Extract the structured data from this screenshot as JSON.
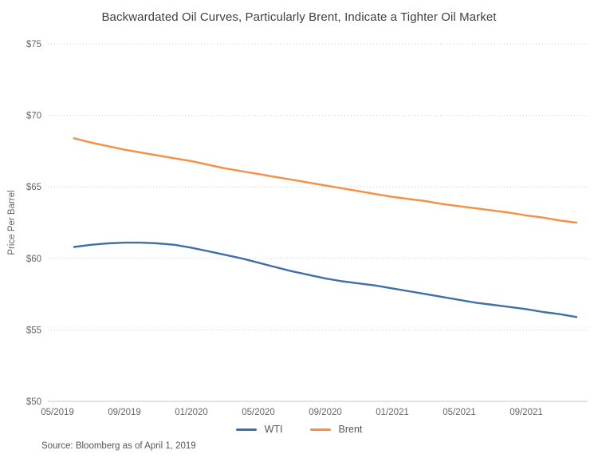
{
  "header": {
    "title": "Backwardated Oil Curves, Particularly Brent, Indicate a Tighter Oil Market"
  },
  "footer": {
    "source": "Source: Bloomberg as of April 1, 2019"
  },
  "colors": {
    "wti_blue": "#3E6FA8",
    "brent_orange": "#F78E44",
    "gridline": "#cccccc",
    "axis_line": "#c4c4c4",
    "axis_text": "#666666",
    "title_text": "#3f3f3f"
  },
  "chart_data": {
    "type": "line",
    "title": "Backwardated Oil Curves, Particularly Brent, Indicate a Tighter Oil Market",
    "xlabel": "",
    "ylabel": "Price Per Barrel",
    "ylim": [
      50,
      75
    ],
    "ytick_values": [
      75,
      70,
      65,
      60,
      55,
      50
    ],
    "ytick_prefix": "$",
    "grid": "dotted-horizontal",
    "legend_position": "bottom",
    "xtick_labels": [
      "05/2019",
      "09/2019",
      "01/2020",
      "05/2020",
      "09/2020",
      "01/2021",
      "05/2021",
      "09/2021"
    ],
    "xtick_month_offsets": [
      0,
      4,
      8,
      12,
      16,
      20,
      24,
      28
    ],
    "x": [
      "06/2019",
      "07/2019",
      "08/2019",
      "09/2019",
      "10/2019",
      "11/2019",
      "12/2019",
      "01/2020",
      "02/2020",
      "03/2020",
      "04/2020",
      "05/2020",
      "06/2020",
      "07/2020",
      "08/2020",
      "09/2020",
      "10/2020",
      "11/2020",
      "12/2020",
      "01/2021",
      "02/2021",
      "03/2021",
      "04/2021",
      "05/2021",
      "06/2021",
      "07/2021",
      "08/2021",
      "09/2021",
      "10/2021",
      "11/2021",
      "12/2021"
    ],
    "series": [
      {
        "name": "WTI",
        "color": "#3E6FA8",
        "values": [
          60.8,
          60.95,
          61.05,
          61.1,
          61.1,
          61.05,
          60.95,
          60.75,
          60.5,
          60.25,
          60.0,
          59.7,
          59.4,
          59.1,
          58.85,
          58.6,
          58.4,
          58.25,
          58.1,
          57.9,
          57.7,
          57.5,
          57.3,
          57.1,
          56.9,
          56.75,
          56.6,
          56.45,
          56.25,
          56.1,
          55.9
        ]
      },
      {
        "name": "Brent",
        "color": "#F78E44",
        "values": [
          68.4,
          68.1,
          67.85,
          67.6,
          67.4,
          67.2,
          67.0,
          66.8,
          66.55,
          66.3,
          66.1,
          65.9,
          65.7,
          65.5,
          65.3,
          65.1,
          64.9,
          64.7,
          64.5,
          64.3,
          64.15,
          64.0,
          63.8,
          63.65,
          63.5,
          63.35,
          63.2,
          63.0,
          62.85,
          62.65,
          62.5
        ]
      }
    ]
  }
}
